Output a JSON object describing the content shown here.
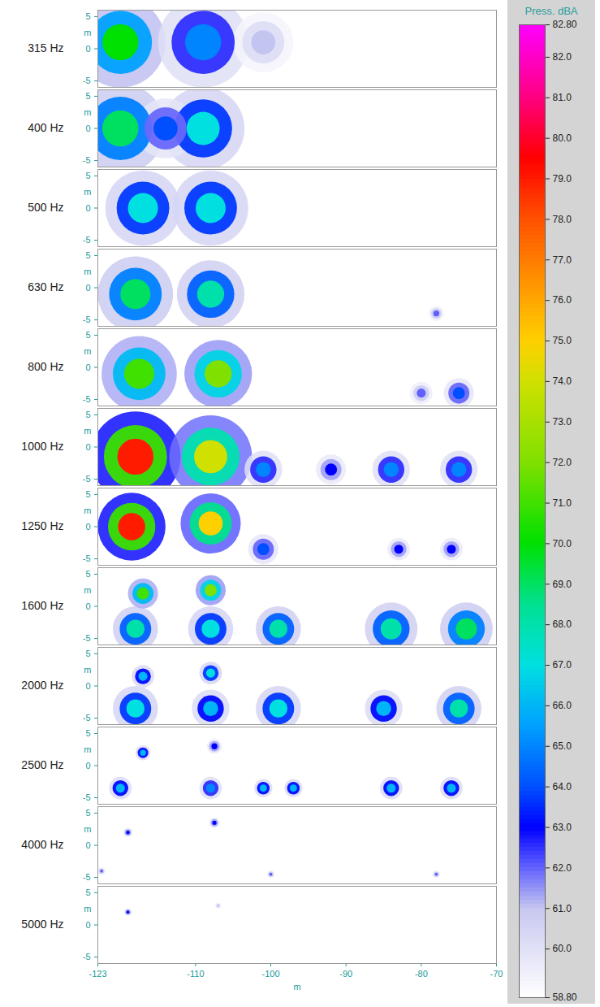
{
  "chart_data": {
    "type": "heatmap",
    "x_label": "m",
    "y_label": "m",
    "xlim": [
      -123,
      -70
    ],
    "xticks": [
      -123,
      -110,
      -100,
      -90,
      -80,
      -70
    ],
    "ylim": [
      -6,
      6
    ],
    "yticks": [
      -5,
      0,
      5
    ],
    "colorbar": {
      "title": "Press. dBA",
      "range": [
        58.8,
        82.8
      ],
      "ticks": [
        {
          "value": 58.8,
          "label": "58.80"
        },
        {
          "value": 60,
          "label": "60.0"
        },
        {
          "value": 61,
          "label": "61.0"
        },
        {
          "value": 62,
          "label": "62.0"
        },
        {
          "value": 63,
          "label": "63.0"
        },
        {
          "value": 64,
          "label": "64.0"
        },
        {
          "value": 65,
          "label": "65.0"
        },
        {
          "value": 66,
          "label": "66.0"
        },
        {
          "value": 67,
          "label": "67.0"
        },
        {
          "value": 68,
          "label": "68.0"
        },
        {
          "value": 69,
          "label": "69.0"
        },
        {
          "value": 70,
          "label": "70.0"
        },
        {
          "value": 71,
          "label": "71.0"
        },
        {
          "value": 72,
          "label": "72.0"
        },
        {
          "value": 73,
          "label": "73.0"
        },
        {
          "value": 74,
          "label": "74.0"
        },
        {
          "value": 75,
          "label": "75.0"
        },
        {
          "value": 76,
          "label": "76.0"
        },
        {
          "value": 77,
          "label": "77.0"
        },
        {
          "value": 78,
          "label": "78.0"
        },
        {
          "value": 79,
          "label": "79.0"
        },
        {
          "value": 80,
          "label": "80.0"
        },
        {
          "value": 81,
          "label": "81.0"
        },
        {
          "value": 82,
          "label": "82.0"
        },
        {
          "value": 82.8,
          "label": "82.80"
        }
      ]
    },
    "panels": [
      {
        "label": "315 Hz",
        "sources": [
          {
            "x": -120,
            "y": 1,
            "level": 70,
            "radius": 6
          },
          {
            "x": -109,
            "y": 1,
            "level": 65,
            "radius": 6
          },
          {
            "x": -101,
            "y": 1,
            "level": 61,
            "radius": 4
          }
        ]
      },
      {
        "label": "400 Hz",
        "sources": [
          {
            "x": -120,
            "y": 0,
            "level": 69,
            "radius": 6
          },
          {
            "x": -114,
            "y": 0,
            "level": 64,
            "radius": 4
          },
          {
            "x": -109,
            "y": 0,
            "level": 67,
            "radius": 5.5
          }
        ]
      },
      {
        "label": "500 Hz",
        "sources": [
          {
            "x": -117,
            "y": 0,
            "level": 67,
            "radius": 5
          },
          {
            "x": -108,
            "y": 0,
            "level": 67,
            "radius": 5
          }
        ]
      },
      {
        "label": "630 Hz",
        "sources": [
          {
            "x": -118,
            "y": -1,
            "level": 69,
            "radius": 5
          },
          {
            "x": -108,
            "y": -1,
            "level": 68,
            "radius": 4.5
          },
          {
            "x": -78,
            "y": -4,
            "level": 62,
            "radius": 1
          }
        ]
      },
      {
        "label": "800 Hz",
        "sources": [
          {
            "x": -117.5,
            "y": -1,
            "level": 71,
            "radius": 5
          },
          {
            "x": -107,
            "y": -1,
            "level": 72,
            "radius": 4.5
          },
          {
            "x": -80,
            "y": -4,
            "level": 62,
            "radius": 1.5
          },
          {
            "x": -75,
            "y": -4,
            "level": 64,
            "radius": 2
          }
        ]
      },
      {
        "label": "1000 Hz",
        "sources": [
          {
            "x": -118,
            "y": -1.5,
            "level": 79,
            "radius": 6
          },
          {
            "x": -108,
            "y": -1.5,
            "level": 74,
            "radius": 5.5
          },
          {
            "x": -101,
            "y": -3.5,
            "level": 65,
            "radius": 2.5
          },
          {
            "x": -92,
            "y": -3.5,
            "level": 63,
            "radius": 2
          },
          {
            "x": -84,
            "y": -3.5,
            "level": 65,
            "radius": 2.5
          },
          {
            "x": -75,
            "y": -3.5,
            "level": 65,
            "radius": 2.5
          }
        ]
      },
      {
        "label": "1250 Hz",
        "sources": [
          {
            "x": -118.5,
            "y": 0,
            "level": 79,
            "radius": 4.5
          },
          {
            "x": -108,
            "y": 0.5,
            "level": 75,
            "radius": 4
          },
          {
            "x": -101,
            "y": -3.5,
            "level": 64,
            "radius": 2
          },
          {
            "x": -83,
            "y": -3.5,
            "level": 63,
            "radius": 1.5
          },
          {
            "x": -76,
            "y": -3.5,
            "level": 63,
            "radius": 1.5
          }
        ]
      },
      {
        "label": "1600 Hz",
        "sources": [
          {
            "x": -117,
            "y": 2,
            "level": 71,
            "radius": 2
          },
          {
            "x": -108,
            "y": 2.5,
            "level": 72,
            "radius": 2
          },
          {
            "x": -118,
            "y": -3.5,
            "level": 68,
            "radius": 3
          },
          {
            "x": -108,
            "y": -3.5,
            "level": 67,
            "radius": 3
          },
          {
            "x": -99,
            "y": -3.5,
            "level": 68,
            "radius": 3
          },
          {
            "x": -84,
            "y": -3.5,
            "level": 68,
            "radius": 3.5
          },
          {
            "x": -74,
            "y": -3.5,
            "level": 69,
            "radius": 3.5
          }
        ]
      },
      {
        "label": "2000 Hz",
        "sources": [
          {
            "x": -117,
            "y": 1.5,
            "level": 66,
            "radius": 1.5
          },
          {
            "x": -108,
            "y": 2,
            "level": 67,
            "radius": 1.5
          },
          {
            "x": -118,
            "y": -3.5,
            "level": 67,
            "radius": 3
          },
          {
            "x": -108,
            "y": -3.5,
            "level": 66,
            "radius": 2.5
          },
          {
            "x": -99,
            "y": -3.5,
            "level": 67,
            "radius": 3
          },
          {
            "x": -85,
            "y": -3.5,
            "level": 66,
            "radius": 2.5
          },
          {
            "x": -75,
            "y": -3.5,
            "level": 68,
            "radius": 3
          }
        ]
      },
      {
        "label": "2500 Hz",
        "sources": [
          {
            "x": -117,
            "y": 2,
            "level": 66,
            "radius": 1
          },
          {
            "x": -107.5,
            "y": 3,
            "level": 63,
            "radius": 1
          },
          {
            "x": -120,
            "y": -3.5,
            "level": 66,
            "radius": 1.5
          },
          {
            "x": -108,
            "y": -3.5,
            "level": 65,
            "radius": 1.5
          },
          {
            "x": -101,
            "y": -3.5,
            "level": 66,
            "radius": 1.2
          },
          {
            "x": -97,
            "y": -3.5,
            "level": 66,
            "radius": 1.2
          },
          {
            "x": -84,
            "y": -3.5,
            "level": 66,
            "radius": 1.5
          },
          {
            "x": -76,
            "y": -3.5,
            "level": 66,
            "radius": 1.5
          }
        ]
      },
      {
        "label": "4000 Hz",
        "sources": [
          {
            "x": -119,
            "y": 2,
            "level": 63,
            "radius": 0.6
          },
          {
            "x": -107.5,
            "y": 3.5,
            "level": 63,
            "radius": 0.7
          },
          {
            "x": -122.5,
            "y": -4,
            "level": 62,
            "radius": 0.5
          },
          {
            "x": -100,
            "y": -4.5,
            "level": 62,
            "radius": 0.5
          },
          {
            "x": -78,
            "y": -4.5,
            "level": 62,
            "radius": 0.5
          }
        ]
      },
      {
        "label": "5000 Hz",
        "sources": [
          {
            "x": -119,
            "y": 2,
            "level": 63,
            "radius": 0.5
          },
          {
            "x": -107,
            "y": 3,
            "level": 61,
            "radius": 0.4
          }
        ]
      }
    ]
  }
}
